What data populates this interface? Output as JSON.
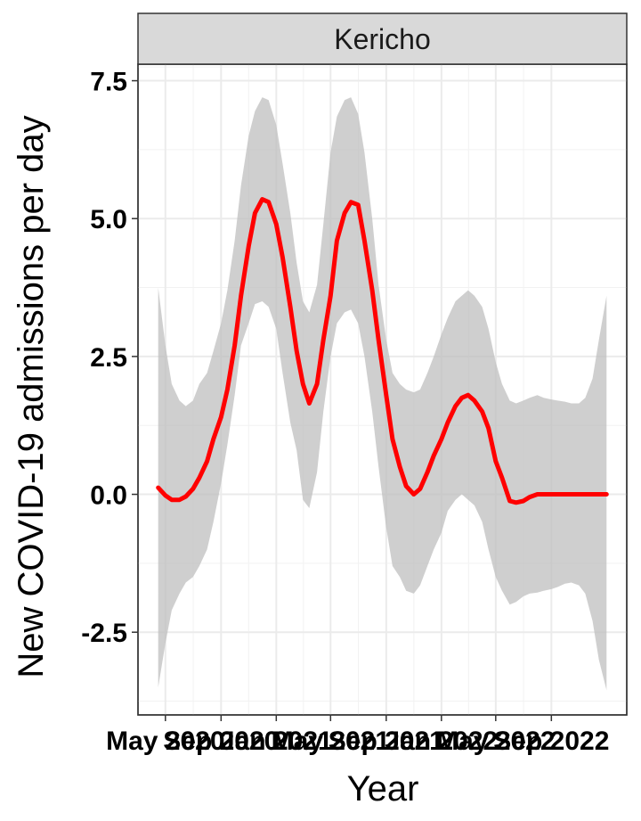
{
  "chart_data": {
    "type": "line",
    "panel_label": "Kericho",
    "xlabel": "Year",
    "ylabel": "New COVID-19 admissions per day",
    "x_tick_labels": [
      "May 2020",
      "Sep 2020",
      "Jan 2021",
      "May 2021",
      "Sep 2021",
      "Jan 2022",
      "May 2022",
      "Sep 2022"
    ],
    "y_ticks": [
      -2.5,
      0.0,
      2.5,
      5.0,
      7.5
    ],
    "y_tick_labels": [
      "-2.5",
      "0.0",
      "2.5",
      "5.0",
      "7.5"
    ],
    "ylim": [
      -4.0,
      7.8
    ],
    "grid": true,
    "colors": {
      "line": "#ff0000",
      "ribbon": "#bfbfbf",
      "strip": "#d9d9d9",
      "grid": "#ebebeb"
    },
    "series": [
      {
        "x": [
          "2020-04-15",
          "2020-05-01",
          "2020-05-15",
          "2020-06-01",
          "2020-06-15",
          "2020-07-01",
          "2020-07-15",
          "2020-08-01",
          "2020-08-15",
          "2020-09-01",
          "2020-09-15",
          "2020-10-01",
          "2020-10-15",
          "2020-11-01",
          "2020-11-15",
          "2020-12-01",
          "2020-12-15",
          "2021-01-01",
          "2021-01-15",
          "2021-02-01",
          "2021-02-15",
          "2021-03-01",
          "2021-03-15",
          "2021-04-01",
          "2021-04-15",
          "2021-05-01",
          "2021-05-15",
          "2021-06-01",
          "2021-06-15",
          "2021-07-01",
          "2021-07-15",
          "2021-08-01",
          "2021-08-15",
          "2021-09-01",
          "2021-09-15",
          "2021-10-01",
          "2021-10-15",
          "2021-11-01",
          "2021-11-15",
          "2021-12-01",
          "2021-12-15",
          "2022-01-01",
          "2022-01-15",
          "2022-02-01",
          "2022-02-15",
          "2022-03-01",
          "2022-03-15",
          "2022-04-01",
          "2022-04-15",
          "2022-05-01",
          "2022-05-15",
          "2022-06-01",
          "2022-06-15",
          "2022-07-01",
          "2022-07-15",
          "2022-08-01",
          "2022-08-15",
          "2022-09-01",
          "2022-09-15",
          "2022-10-01",
          "2022-10-15",
          "2022-11-01",
          "2022-11-15",
          "2022-12-01",
          "2022-12-15",
          "2023-01-01"
        ],
        "y": [
          0.12,
          -0.02,
          -0.1,
          -0.1,
          -0.04,
          0.1,
          0.3,
          0.6,
          1.0,
          1.4,
          1.9,
          2.7,
          3.6,
          4.5,
          5.1,
          5.35,
          5.3,
          4.9,
          4.3,
          3.4,
          2.6,
          2.0,
          1.65,
          2.0,
          2.8,
          3.6,
          4.6,
          5.1,
          5.3,
          5.25,
          4.6,
          3.7,
          2.8,
          1.8,
          1.0,
          0.5,
          0.15,
          0.0,
          0.1,
          0.4,
          0.7,
          1.0,
          1.3,
          1.6,
          1.75,
          1.8,
          1.7,
          1.5,
          1.2,
          0.6,
          0.3,
          -0.12,
          -0.15,
          -0.12,
          -0.05,
          0.0,
          0.0,
          0.0,
          0.0,
          0.0,
          0.0,
          0.0,
          0.0,
          0.0,
          0.0,
          0.0
        ],
        "ymin": [
          -3.5,
          -2.7,
          -2.1,
          -1.8,
          -1.6,
          -1.5,
          -1.3,
          -1.0,
          -0.5,
          0.2,
          0.9,
          1.8,
          2.7,
          3.1,
          3.45,
          3.5,
          3.4,
          3.0,
          2.2,
          1.3,
          0.8,
          -0.1,
          -0.25,
          0.4,
          1.5,
          2.5,
          3.1,
          3.3,
          3.35,
          3.1,
          2.5,
          1.5,
          0.5,
          -0.6,
          -1.3,
          -1.5,
          -1.75,
          -1.8,
          -1.65,
          -1.3,
          -1.0,
          -0.7,
          -0.3,
          -0.1,
          0.0,
          -0.1,
          -0.2,
          -0.5,
          -1.0,
          -1.5,
          -1.75,
          -2.0,
          -1.95,
          -1.85,
          -1.8,
          -1.78,
          -1.75,
          -1.72,
          -1.68,
          -1.62,
          -1.6,
          -1.65,
          -1.8,
          -2.3,
          -3.0,
          -3.55
        ],
        "ymax": [
          3.75,
          2.7,
          2.0,
          1.7,
          1.6,
          1.7,
          2.0,
          2.2,
          2.6,
          3.1,
          3.7,
          4.6,
          5.6,
          6.5,
          6.95,
          7.2,
          7.15,
          6.7,
          6.0,
          5.1,
          4.2,
          3.5,
          3.3,
          3.8,
          4.9,
          6.2,
          6.85,
          7.15,
          7.2,
          6.9,
          6.2,
          5.0,
          3.8,
          2.8,
          2.2,
          2.0,
          1.9,
          1.85,
          1.9,
          2.2,
          2.5,
          2.9,
          3.2,
          3.5,
          3.6,
          3.7,
          3.6,
          3.4,
          3.0,
          2.4,
          2.0,
          1.7,
          1.65,
          1.7,
          1.75,
          1.8,
          1.75,
          1.72,
          1.7,
          1.68,
          1.65,
          1.65,
          1.75,
          2.1,
          2.8,
          3.6
        ]
      }
    ]
  }
}
